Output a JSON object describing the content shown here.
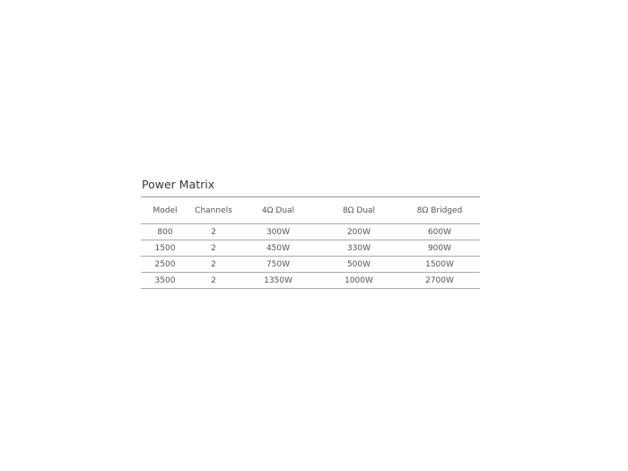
{
  "title": "Power Matrix",
  "table": {
    "headers": [
      "Model",
      "Channels",
      "4Ω Dual",
      "8Ω Dual",
      "8Ω Bridged"
    ],
    "rows": [
      [
        "800",
        "2",
        "300W",
        "200W",
        "600W"
      ],
      [
        "1500",
        "2",
        "450W",
        "330W",
        "900W"
      ],
      [
        "2500",
        "2",
        "750W",
        "500W",
        "1500W"
      ],
      [
        "3500",
        "2",
        "1350W",
        "1000W",
        "2700W"
      ]
    ]
  }
}
